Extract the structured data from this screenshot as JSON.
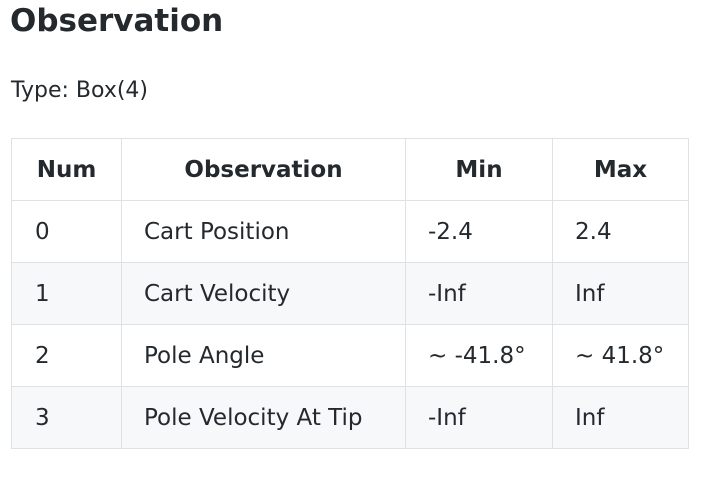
{
  "heading": "Observation",
  "type_line": "Type: Box(4)",
  "table": {
    "headers": [
      "Num",
      "Observation",
      "Min",
      "Max"
    ],
    "rows": [
      [
        "0",
        "Cart Position",
        "-2.4",
        "2.4"
      ],
      [
        "1",
        "Cart Velocity",
        "-Inf",
        "Inf"
      ],
      [
        "2",
        "Pole Angle",
        "~ -41.8°",
        "~ 41.8°"
      ],
      [
        "3",
        "Pole Velocity At Tip",
        "-Inf",
        "Inf"
      ]
    ]
  },
  "colors": {
    "text": "#24292e",
    "border": "#dfe2e5",
    "stripe": "#f6f8fa"
  }
}
